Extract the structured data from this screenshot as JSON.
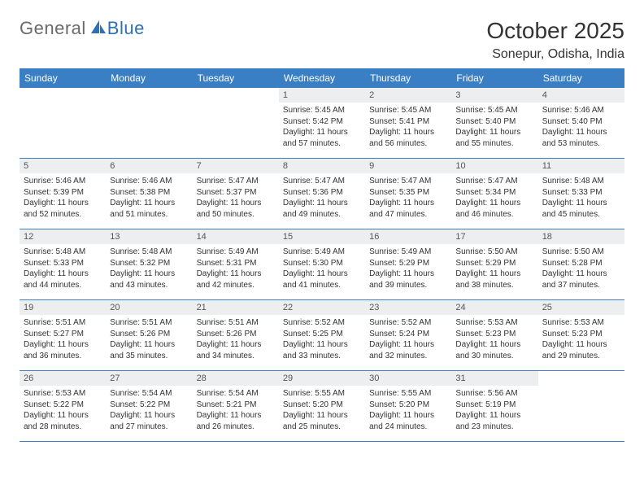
{
  "logo": {
    "text1": "General",
    "text2": "Blue"
  },
  "title": {
    "month": "October 2025",
    "location": "Sonepur, Odisha, India"
  },
  "style": {
    "header_bg": "#3a7fc4",
    "header_text": "#ffffff",
    "daynum_bg": "#eceef0",
    "daynum_text": "#555555",
    "body_text": "#333333",
    "rule_color": "#3a7fc4",
    "logo_gray": "#6a6a6a",
    "logo_blue": "#2f6fb3",
    "weekday_fontsize": 12,
    "daynum_fontsize": 11,
    "cell_fontsize": 10,
    "month_fontsize": 28,
    "location_fontsize": 16
  },
  "weekdays": [
    "Sunday",
    "Monday",
    "Tuesday",
    "Wednesday",
    "Thursday",
    "Friday",
    "Saturday"
  ],
  "weeks": [
    [
      {
        "n": "",
        "sr": "",
        "ss": "",
        "dl": ""
      },
      {
        "n": "",
        "sr": "",
        "ss": "",
        "dl": ""
      },
      {
        "n": "",
        "sr": "",
        "ss": "",
        "dl": ""
      },
      {
        "n": "1",
        "sr": "Sunrise: 5:45 AM",
        "ss": "Sunset: 5:42 PM",
        "dl": "Daylight: 11 hours and 57 minutes."
      },
      {
        "n": "2",
        "sr": "Sunrise: 5:45 AM",
        "ss": "Sunset: 5:41 PM",
        "dl": "Daylight: 11 hours and 56 minutes."
      },
      {
        "n": "3",
        "sr": "Sunrise: 5:45 AM",
        "ss": "Sunset: 5:40 PM",
        "dl": "Daylight: 11 hours and 55 minutes."
      },
      {
        "n": "4",
        "sr": "Sunrise: 5:46 AM",
        "ss": "Sunset: 5:40 PM",
        "dl": "Daylight: 11 hours and 53 minutes."
      }
    ],
    [
      {
        "n": "5",
        "sr": "Sunrise: 5:46 AM",
        "ss": "Sunset: 5:39 PM",
        "dl": "Daylight: 11 hours and 52 minutes."
      },
      {
        "n": "6",
        "sr": "Sunrise: 5:46 AM",
        "ss": "Sunset: 5:38 PM",
        "dl": "Daylight: 11 hours and 51 minutes."
      },
      {
        "n": "7",
        "sr": "Sunrise: 5:47 AM",
        "ss": "Sunset: 5:37 PM",
        "dl": "Daylight: 11 hours and 50 minutes."
      },
      {
        "n": "8",
        "sr": "Sunrise: 5:47 AM",
        "ss": "Sunset: 5:36 PM",
        "dl": "Daylight: 11 hours and 49 minutes."
      },
      {
        "n": "9",
        "sr": "Sunrise: 5:47 AM",
        "ss": "Sunset: 5:35 PM",
        "dl": "Daylight: 11 hours and 47 minutes."
      },
      {
        "n": "10",
        "sr": "Sunrise: 5:47 AM",
        "ss": "Sunset: 5:34 PM",
        "dl": "Daylight: 11 hours and 46 minutes."
      },
      {
        "n": "11",
        "sr": "Sunrise: 5:48 AM",
        "ss": "Sunset: 5:33 PM",
        "dl": "Daylight: 11 hours and 45 minutes."
      }
    ],
    [
      {
        "n": "12",
        "sr": "Sunrise: 5:48 AM",
        "ss": "Sunset: 5:33 PM",
        "dl": "Daylight: 11 hours and 44 minutes."
      },
      {
        "n": "13",
        "sr": "Sunrise: 5:48 AM",
        "ss": "Sunset: 5:32 PM",
        "dl": "Daylight: 11 hours and 43 minutes."
      },
      {
        "n": "14",
        "sr": "Sunrise: 5:49 AM",
        "ss": "Sunset: 5:31 PM",
        "dl": "Daylight: 11 hours and 42 minutes."
      },
      {
        "n": "15",
        "sr": "Sunrise: 5:49 AM",
        "ss": "Sunset: 5:30 PM",
        "dl": "Daylight: 11 hours and 41 minutes."
      },
      {
        "n": "16",
        "sr": "Sunrise: 5:49 AM",
        "ss": "Sunset: 5:29 PM",
        "dl": "Daylight: 11 hours and 39 minutes."
      },
      {
        "n": "17",
        "sr": "Sunrise: 5:50 AM",
        "ss": "Sunset: 5:29 PM",
        "dl": "Daylight: 11 hours and 38 minutes."
      },
      {
        "n": "18",
        "sr": "Sunrise: 5:50 AM",
        "ss": "Sunset: 5:28 PM",
        "dl": "Daylight: 11 hours and 37 minutes."
      }
    ],
    [
      {
        "n": "19",
        "sr": "Sunrise: 5:51 AM",
        "ss": "Sunset: 5:27 PM",
        "dl": "Daylight: 11 hours and 36 minutes."
      },
      {
        "n": "20",
        "sr": "Sunrise: 5:51 AM",
        "ss": "Sunset: 5:26 PM",
        "dl": "Daylight: 11 hours and 35 minutes."
      },
      {
        "n": "21",
        "sr": "Sunrise: 5:51 AM",
        "ss": "Sunset: 5:26 PM",
        "dl": "Daylight: 11 hours and 34 minutes."
      },
      {
        "n": "22",
        "sr": "Sunrise: 5:52 AM",
        "ss": "Sunset: 5:25 PM",
        "dl": "Daylight: 11 hours and 33 minutes."
      },
      {
        "n": "23",
        "sr": "Sunrise: 5:52 AM",
        "ss": "Sunset: 5:24 PM",
        "dl": "Daylight: 11 hours and 32 minutes."
      },
      {
        "n": "24",
        "sr": "Sunrise: 5:53 AM",
        "ss": "Sunset: 5:23 PM",
        "dl": "Daylight: 11 hours and 30 minutes."
      },
      {
        "n": "25",
        "sr": "Sunrise: 5:53 AM",
        "ss": "Sunset: 5:23 PM",
        "dl": "Daylight: 11 hours and 29 minutes."
      }
    ],
    [
      {
        "n": "26",
        "sr": "Sunrise: 5:53 AM",
        "ss": "Sunset: 5:22 PM",
        "dl": "Daylight: 11 hours and 28 minutes."
      },
      {
        "n": "27",
        "sr": "Sunrise: 5:54 AM",
        "ss": "Sunset: 5:22 PM",
        "dl": "Daylight: 11 hours and 27 minutes."
      },
      {
        "n": "28",
        "sr": "Sunrise: 5:54 AM",
        "ss": "Sunset: 5:21 PM",
        "dl": "Daylight: 11 hours and 26 minutes."
      },
      {
        "n": "29",
        "sr": "Sunrise: 5:55 AM",
        "ss": "Sunset: 5:20 PM",
        "dl": "Daylight: 11 hours and 25 minutes."
      },
      {
        "n": "30",
        "sr": "Sunrise: 5:55 AM",
        "ss": "Sunset: 5:20 PM",
        "dl": "Daylight: 11 hours and 24 minutes."
      },
      {
        "n": "31",
        "sr": "Sunrise: 5:56 AM",
        "ss": "Sunset: 5:19 PM",
        "dl": "Daylight: 11 hours and 23 minutes."
      },
      {
        "n": "",
        "sr": "",
        "ss": "",
        "dl": ""
      }
    ]
  ]
}
